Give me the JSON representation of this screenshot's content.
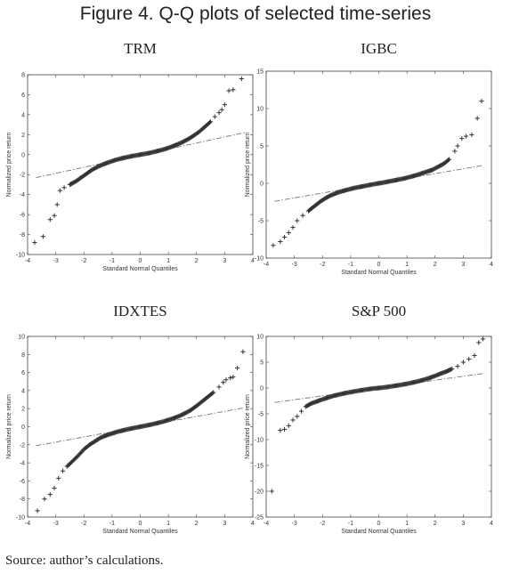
{
  "figure": {
    "title": "Figure 4. Q-Q plots of selected time-series",
    "source": "Source: author’s calculations."
  },
  "colors": {
    "marker": "#333333",
    "reference_line": "#777777",
    "axes": "#444444"
  },
  "chart_data": [
    {
      "type": "scatter",
      "title": "TRM",
      "xlabel": "Standard Normal Quantiles",
      "ylabel": "Normalized price return",
      "xlim": [
        -4,
        4
      ],
      "ylim": [
        -10,
        8
      ],
      "xticks": [
        -4,
        -3,
        -2,
        -1,
        0,
        1,
        2,
        3,
        4
      ],
      "yticks": [
        8,
        6,
        4,
        2,
        0,
        -2,
        -4,
        -6,
        -8,
        -10
      ],
      "reference_line": {
        "x": [
          -3.7,
          3.7
        ],
        "y": [
          -2.3,
          2.2
        ]
      },
      "x": [
        -3.75,
        -3.45,
        -3.2,
        -3.05,
        -2.95,
        -2.85,
        -2.7,
        -2.5,
        -2.3,
        -2.1,
        -1.9,
        -1.7,
        -1.5,
        -1.3,
        -1.1,
        -0.9,
        -0.7,
        -0.5,
        -0.3,
        -0.1,
        0.1,
        0.3,
        0.5,
        0.7,
        0.9,
        1.1,
        1.3,
        1.5,
        1.7,
        1.9,
        2.1,
        2.3,
        2.5,
        2.65,
        2.8,
        2.9,
        3.0,
        3.15,
        3.3,
        3.6
      ],
      "y": [
        -8.8,
        -8.2,
        -6.5,
        -6.1,
        -5.0,
        -3.6,
        -3.3,
        -3.0,
        -2.7,
        -2.3,
        -1.9,
        -1.5,
        -1.2,
        -0.95,
        -0.75,
        -0.55,
        -0.4,
        -0.27,
        -0.15,
        -0.05,
        0.05,
        0.15,
        0.28,
        0.42,
        0.58,
        0.78,
        1.0,
        1.25,
        1.55,
        1.9,
        2.3,
        2.8,
        3.3,
        3.8,
        4.2,
        4.5,
        5.0,
        6.4,
        6.5,
        7.6
      ]
    },
    {
      "type": "scatter",
      "title": "IGBC",
      "xlabel": "Standard Normal Quantiles",
      "ylabel": "Normalized price return",
      "xlim": [
        -4,
        4
      ],
      "ylim": [
        -10,
        15
      ],
      "xticks": [
        -4,
        -3,
        -2,
        -1,
        0,
        1,
        2,
        3,
        4
      ],
      "yticks": [
        15,
        10,
        5,
        0,
        -5,
        -10
      ],
      "reference_line": {
        "x": [
          -3.7,
          3.7
        ],
        "y": [
          -2.4,
          2.4
        ]
      },
      "x": [
        -3.75,
        -3.5,
        -3.35,
        -3.2,
        -3.05,
        -2.9,
        -2.7,
        -2.5,
        -2.3,
        -2.1,
        -1.9,
        -1.7,
        -1.5,
        -1.3,
        -1.1,
        -0.9,
        -0.7,
        -0.5,
        -0.3,
        -0.1,
        0.1,
        0.3,
        0.5,
        0.7,
        0.9,
        1.1,
        1.3,
        1.5,
        1.7,
        1.9,
        2.1,
        2.3,
        2.5,
        2.7,
        2.8,
        2.95,
        3.1,
        3.3,
        3.5,
        3.65
      ],
      "y": [
        -8.3,
        -7.8,
        -7.2,
        -6.6,
        -5.9,
        -5.0,
        -4.3,
        -3.7,
        -3.1,
        -2.5,
        -2.0,
        -1.6,
        -1.3,
        -1.05,
        -0.85,
        -0.65,
        -0.5,
        -0.35,
        -0.2,
        -0.06,
        0.06,
        0.2,
        0.35,
        0.5,
        0.65,
        0.85,
        1.05,
        1.3,
        1.55,
        1.8,
        2.2,
        2.6,
        3.2,
        4.3,
        5.0,
        6.0,
        6.3,
        6.5,
        8.7,
        11.0
      ]
    },
    {
      "type": "scatter",
      "title": "IDXTES",
      "xlabel": "Standard Normal Quantiles",
      "ylabel": "Normalized price return",
      "xlim": [
        -4,
        4
      ],
      "ylim": [
        -10,
        10
      ],
      "xticks": [
        -4,
        -3,
        -2,
        -1,
        0,
        1,
        2,
        3,
        4
      ],
      "yticks": [
        10,
        8,
        6,
        4,
        2,
        0,
        -2,
        -4,
        -6,
        -8,
        -10
      ],
      "reference_line": {
        "x": [
          -3.7,
          3.7
        ],
        "y": [
          -2.1,
          2.1
        ]
      },
      "x": [
        -3.65,
        -3.4,
        -3.2,
        -3.05,
        -2.9,
        -2.75,
        -2.6,
        -2.4,
        -2.2,
        -2.0,
        -1.8,
        -1.6,
        -1.4,
        -1.2,
        -1.0,
        -0.8,
        -0.6,
        -0.4,
        -0.2,
        0.0,
        0.2,
        0.4,
        0.6,
        0.8,
        1.0,
        1.2,
        1.4,
        1.6,
        1.8,
        2.0,
        2.2,
        2.4,
        2.6,
        2.8,
        2.95,
        3.05,
        3.2,
        3.3,
        3.45,
        3.65
      ],
      "y": [
        -9.3,
        -8.0,
        -7.5,
        -6.8,
        -5.7,
        -4.9,
        -4.4,
        -3.8,
        -3.2,
        -2.5,
        -2.0,
        -1.6,
        -1.2,
        -0.95,
        -0.75,
        -0.55,
        -0.4,
        -0.25,
        -0.12,
        0.0,
        0.12,
        0.25,
        0.4,
        0.55,
        0.75,
        0.95,
        1.2,
        1.5,
        1.85,
        2.3,
        2.8,
        3.3,
        3.8,
        4.4,
        4.9,
        5.2,
        5.4,
        5.5,
        6.5,
        8.3
      ]
    },
    {
      "type": "scatter",
      "title": "S&P 500",
      "xlabel": "Standard Normal Quantiles",
      "ylabel": "Normalized price return",
      "xlim": [
        -4,
        4
      ],
      "ylim": [
        -25,
        10
      ],
      "xticks": [
        -4,
        -3,
        -2,
        -1,
        0,
        1,
        2,
        3,
        4
      ],
      "yticks": [
        10,
        5,
        0,
        -5,
        -10,
        -15,
        -20,
        -25
      ],
      "reference_line": {
        "x": [
          -3.7,
          3.7
        ],
        "y": [
          -2.8,
          2.8
        ]
      },
      "x": [
        -3.8,
        -3.5,
        -3.35,
        -3.2,
        -3.05,
        -2.9,
        -2.75,
        -2.6,
        -2.4,
        -2.2,
        -2.0,
        -1.8,
        -1.6,
        -1.4,
        -1.2,
        -1.0,
        -0.8,
        -0.6,
        -0.4,
        -0.2,
        0.0,
        0.2,
        0.4,
        0.6,
        0.8,
        1.0,
        1.2,
        1.4,
        1.6,
        1.8,
        2.0,
        2.2,
        2.4,
        2.6,
        2.8,
        3.0,
        3.2,
        3.4,
        3.55,
        3.7
      ],
      "y": [
        -20.0,
        -8.2,
        -8.0,
        -7.3,
        -6.2,
        -5.5,
        -4.5,
        -3.6,
        -3.0,
        -2.6,
        -2.2,
        -1.85,
        -1.5,
        -1.25,
        -1.0,
        -0.8,
        -0.6,
        -0.42,
        -0.25,
        -0.1,
        0.0,
        0.12,
        0.28,
        0.45,
        0.62,
        0.82,
        1.05,
        1.3,
        1.6,
        1.95,
        2.35,
        2.8,
        3.2,
        3.7,
        4.2,
        5.0,
        5.6,
        6.3,
        8.8,
        9.5
      ]
    }
  ]
}
